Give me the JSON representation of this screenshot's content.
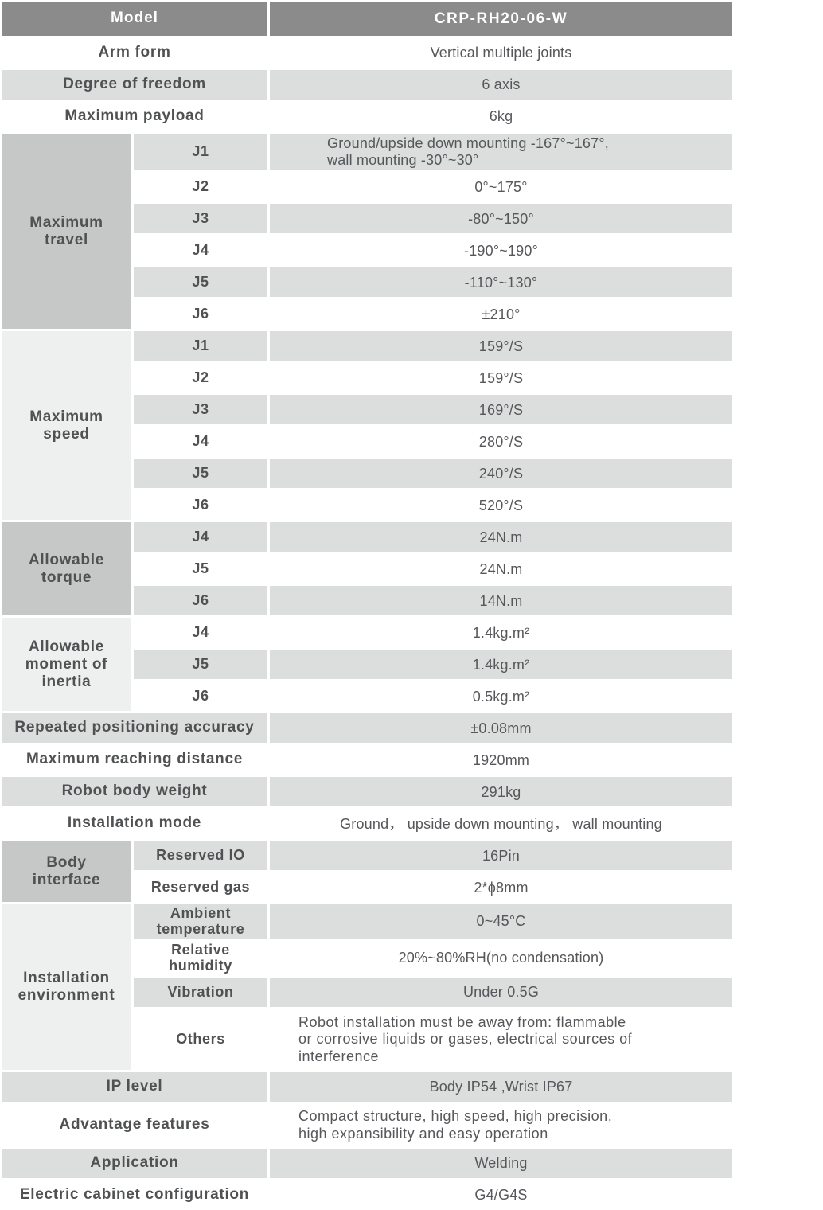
{
  "colors": {
    "header_bg": "#8b8b8b",
    "header_text": "#ffffff",
    "stripe_gray": "#dcdddd",
    "group_dark": "#c6c7c7",
    "group_light": "#eeefef",
    "label_text": "#4f5153",
    "value_text": "#56575a"
  },
  "header": {
    "label": "Model",
    "value": "CRP-RH20-06-W"
  },
  "rows_top": [
    {
      "label": "Arm form",
      "value": "Vertical multiple joints"
    },
    {
      "label": "Degree of freedom",
      "value": "6 axis"
    },
    {
      "label": "Maximum payload",
      "value": "6kg"
    }
  ],
  "maximum_travel": {
    "label": "Maximum travel",
    "rows": [
      {
        "sub": "J1",
        "line1": "Ground/upside down mounting -167°~167°,",
        "line2": "wall mounting -30°~30°"
      },
      {
        "sub": "J2",
        "value": "0°~175°"
      },
      {
        "sub": "J3",
        "value": "-80°~150°"
      },
      {
        "sub": "J4",
        "value": "-190°~190°"
      },
      {
        "sub": "J5",
        "value": "-110°~130°"
      },
      {
        "sub": "J6",
        "value": "±210°"
      }
    ]
  },
  "maximum_speed": {
    "label": "Maximum speed",
    "rows": [
      {
        "sub": "J1",
        "value": "159°/S"
      },
      {
        "sub": "J2",
        "value": "159°/S"
      },
      {
        "sub": "J3",
        "value": "169°/S"
      },
      {
        "sub": "J4",
        "value": "280°/S"
      },
      {
        "sub": "J5",
        "value": "240°/S"
      },
      {
        "sub": "J6",
        "value": "520°/S"
      }
    ]
  },
  "allowable_torque": {
    "label": "Allowable torque",
    "rows": [
      {
        "sub": "J4",
        "value": "24N.m"
      },
      {
        "sub": "J5",
        "value": "24N.m"
      },
      {
        "sub": "J6",
        "value": "14N.m"
      }
    ]
  },
  "allowable_inertia": {
    "label": "Allowable moment of inertia",
    "rows": [
      {
        "sub": "J4",
        "value": "1.4kg.m²"
      },
      {
        "sub": "J5",
        "value": "1.4kg.m²"
      },
      {
        "sub": "J6",
        "value": "0.5kg.m²"
      }
    ]
  },
  "rows_mid": [
    {
      "label": "Repeated positioning accuracy",
      "value": "±0.08mm"
    },
    {
      "label": "Maximum reaching distance",
      "value": "1920mm"
    },
    {
      "label": "Robot body weight",
      "value": "291kg"
    },
    {
      "label": "Installation mode",
      "value": "Ground， upside down mounting， wall mounting"
    }
  ],
  "body_interface": {
    "label": "Body interface",
    "rows": [
      {
        "sub": "Reserved IO",
        "value": "16Pin"
      },
      {
        "sub": "Reserved gas",
        "value": "2*ϕ8mm"
      }
    ]
  },
  "installation_environment": {
    "label": "Installation environment",
    "rows": [
      {
        "sub": "Ambient temperature",
        "value": "0~45°C"
      },
      {
        "sub": "Relative humidity",
        "value": "20%~80%RH(no condensation)"
      },
      {
        "sub": "Vibration",
        "value": "Under 0.5G"
      },
      {
        "sub": "Others",
        "value": "Robot installation must be away from: flammable or corrosive liquids or gases, electrical sources of interference"
      }
    ]
  },
  "rows_bottom": [
    {
      "label": "IP level",
      "value": "Body IP54 ,Wrist IP67"
    },
    {
      "label": "Advantage features",
      "value": "Compact structure, high speed, high precision, high expansibility and easy operation"
    },
    {
      "label": "Application",
      "value": "Welding"
    },
    {
      "label": "Electric cabinet configuration",
      "value": "G4/G4S"
    }
  ]
}
